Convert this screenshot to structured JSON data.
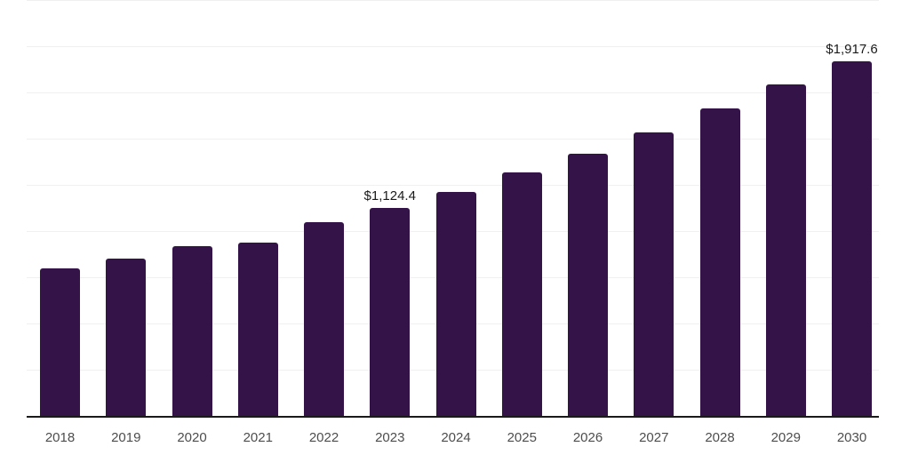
{
  "chart": {
    "background_color": "#ffffff",
    "bar_color": "#341349",
    "grid_color": "#f0f0f0",
    "axis_color": "#1a1a1a",
    "tick_label_color": "#4d4d4d",
    "value_label_color": "#1a1a1a"
  },
  "chart_data": {
    "type": "bar",
    "title": "",
    "xlabel": "",
    "ylabel": "",
    "categories": [
      "2018",
      "2019",
      "2020",
      "2021",
      "2022",
      "2023",
      "2024",
      "2025",
      "2026",
      "2027",
      "2028",
      "2029",
      "2030"
    ],
    "values": [
      800,
      853,
      920,
      938,
      1047,
      1124.4,
      1210,
      1315,
      1417,
      1535,
      1662,
      1792,
      1917.6
    ],
    "value_labels": {
      "2023": "$1,124.4",
      "2030": "$1,917.6"
    },
    "ylim": [
      0,
      2250
    ],
    "gridline_step": 250,
    "grid": "horizontal",
    "y_axis_labels_visible": false,
    "legend_position": "none",
    "currency_prefix": "$"
  }
}
